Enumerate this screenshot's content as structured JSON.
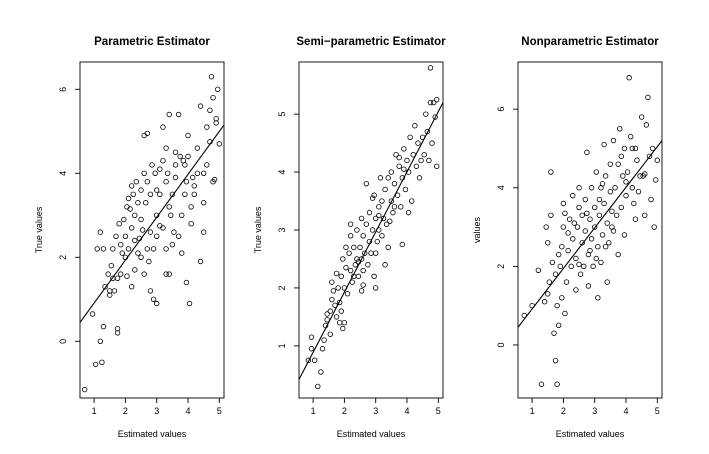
{
  "chart_data": [
    {
      "type": "scatter",
      "title": "Parametric  Estimator",
      "xlabel": "Estimated values",
      "ylabel": "True values",
      "xlim": [
        0.55,
        5.15
      ],
      "ylim": [
        -1.35,
        6.65
      ],
      "xticks": [
        "1",
        "2",
        "3",
        "4",
        "5"
      ],
      "yticks": [
        "0",
        "2",
        "4",
        "6"
      ],
      "fit_line": [
        [
          0.55,
          0.45
        ],
        [
          5.15,
          5.15
        ]
      ],
      "points": [
        [
          0.7,
          -1.15
        ],
        [
          0.95,
          0.65
        ],
        [
          1.2,
          0.0
        ],
        [
          1.05,
          -0.55
        ],
        [
          1.25,
          -0.5
        ],
        [
          1.3,
          0.35
        ],
        [
          1.5,
          1.1
        ],
        [
          1.35,
          1.3
        ],
        [
          1.45,
          1.6
        ],
        [
          1.2,
          2.6
        ],
        [
          1.1,
          2.2
        ],
        [
          1.3,
          2.2
        ],
        [
          1.5,
          1.2
        ],
        [
          1.65,
          1.2
        ],
        [
          1.75,
          0.2
        ],
        [
          1.75,
          0.3
        ],
        [
          1.6,
          1.5
        ],
        [
          1.75,
          1.5
        ],
        [
          1.85,
          1.6
        ],
        [
          1.6,
          2.2
        ],
        [
          1.7,
          2.5
        ],
        [
          1.8,
          2.8
        ],
        [
          1.9,
          2.1
        ],
        [
          2.0,
          2.0
        ],
        [
          2.0,
          2.5
        ],
        [
          2.1,
          2.2
        ],
        [
          2.2,
          2.7
        ],
        [
          2.3,
          2.4
        ],
        [
          2.3,
          3.0
        ],
        [
          2.1,
          3.4
        ],
        [
          2.2,
          3.7
        ],
        [
          2.4,
          3.3
        ],
        [
          2.5,
          2.9
        ],
        [
          2.5,
          3.6
        ],
        [
          2.6,
          4.0
        ],
        [
          2.6,
          4.9
        ],
        [
          2.7,
          4.95
        ],
        [
          2.7,
          3.8
        ],
        [
          2.8,
          3.5
        ],
        [
          2.8,
          2.6
        ],
        [
          2.9,
          2.2
        ],
        [
          2.9,
          1.0
        ],
        [
          3.0,
          0.9
        ],
        [
          2.8,
          1.2
        ],
        [
          2.6,
          1.6
        ],
        [
          2.4,
          2.1
        ],
        [
          2.3,
          1.7
        ],
        [
          2.2,
          1.3
        ],
        [
          2.5,
          2.0
        ],
        [
          2.7,
          2.2
        ],
        [
          3.0,
          2.5
        ],
        [
          3.0,
          3.0
        ],
        [
          3.1,
          3.5
        ],
        [
          3.1,
          4.1
        ],
        [
          3.2,
          4.3
        ],
        [
          3.3,
          4.6
        ],
        [
          3.2,
          5.1
        ],
        [
          3.4,
          5.4
        ],
        [
          3.3,
          3.8
        ],
        [
          3.4,
          3.2
        ],
        [
          3.2,
          2.7
        ],
        [
          3.3,
          2.2
        ],
        [
          3.4,
          1.6
        ],
        [
          3.3,
          1.6
        ],
        [
          3.5,
          2.3
        ],
        [
          3.5,
          3.5
        ],
        [
          3.6,
          4.2
        ],
        [
          3.6,
          4.5
        ],
        [
          3.7,
          5.4
        ],
        [
          3.7,
          2.5
        ],
        [
          3.8,
          2.1
        ],
        [
          3.8,
          3.0
        ],
        [
          3.9,
          3.5
        ],
        [
          3.9,
          4.2
        ],
        [
          4.0,
          4.4
        ],
        [
          4.0,
          4.9
        ],
        [
          4.1,
          2.8
        ],
        [
          4.1,
          3.2
        ],
        [
          3.95,
          1.4
        ],
        [
          4.05,
          0.9
        ],
        [
          4.2,
          3.7
        ],
        [
          4.3,
          4.0
        ],
        [
          4.3,
          4.6
        ],
        [
          4.4,
          5.6
        ],
        [
          4.4,
          1.9
        ],
        [
          4.5,
          3.3
        ],
        [
          4.5,
          2.6
        ],
        [
          4.6,
          4.2
        ],
        [
          4.6,
          5.1
        ],
        [
          4.7,
          4.75
        ],
        [
          4.7,
          5.5
        ],
        [
          4.75,
          6.3
        ],
        [
          4.8,
          5.8
        ],
        [
          4.8,
          3.8
        ],
        [
          4.85,
          3.85
        ],
        [
          4.9,
          5.3
        ],
        [
          4.9,
          5.2
        ],
        [
          4.95,
          6.0
        ],
        [
          5.0,
          4.7
        ],
        [
          4.5,
          4.0
        ],
        [
          4.2,
          3.5
        ],
        [
          3.95,
          3.8
        ],
        [
          3.85,
          4.3
        ],
        [
          3.75,
          4.4
        ],
        [
          3.6,
          3.9
        ],
        [
          3.45,
          3.0
        ],
        [
          3.1,
          2.75
        ],
        [
          3.0,
          3.6
        ],
        [
          2.95,
          4.0
        ],
        [
          2.85,
          4.2
        ],
        [
          2.65,
          3.3
        ],
        [
          2.55,
          2.65
        ],
        [
          2.45,
          2.45
        ],
        [
          2.35,
          3.8
        ],
        [
          2.25,
          3.5
        ],
        [
          2.05,
          3.2
        ],
        [
          1.95,
          2.9
        ],
        [
          1.85,
          2.3
        ],
        [
          1.55,
          1.8
        ],
        [
          2.75,
          1.9
        ],
        [
          2.05,
          1.55
        ],
        [
          3.55,
          2.6
        ],
        [
          4.15,
          3.9
        ],
        [
          3.35,
          4.0
        ],
        [
          2.15,
          3.15
        ]
      ]
    },
    {
      "type": "scatter",
      "title": "Semi−parametric  Estimator",
      "xlabel": "Estimated values",
      "ylabel": "True values",
      "xlim": [
        0.55,
        5.15
      ],
      "ylim": [
        0.1,
        5.9
      ],
      "xticks": [
        "1",
        "2",
        "3",
        "4",
        "5"
      ],
      "yticks": [
        "1",
        "2",
        "3",
        "4",
        "5"
      ],
      "fit_line": [
        [
          0.55,
          0.42
        ],
        [
          5.15,
          5.2
        ]
      ],
      "points": [
        [
          0.85,
          0.75
        ],
        [
          0.95,
          0.95
        ],
        [
          0.95,
          1.15
        ],
        [
          1.05,
          0.75
        ],
        [
          1.15,
          0.3
        ],
        [
          1.25,
          0.55
        ],
        [
          1.3,
          0.95
        ],
        [
          1.35,
          1.1
        ],
        [
          1.4,
          1.35
        ],
        [
          1.45,
          1.45
        ],
        [
          1.45,
          1.55
        ],
        [
          1.55,
          1.6
        ],
        [
          1.6,
          1.8
        ],
        [
          1.6,
          2.1
        ],
        [
          1.65,
          1.95
        ],
        [
          1.7,
          1.7
        ],
        [
          1.75,
          1.5
        ],
        [
          1.75,
          2.25
        ],
        [
          1.8,
          2.0
        ],
        [
          1.85,
          1.75
        ],
        [
          1.9,
          1.6
        ],
        [
          1.9,
          2.2
        ],
        [
          1.95,
          2.5
        ],
        [
          2.0,
          2.0
        ],
        [
          2.05,
          2.35
        ],
        [
          2.05,
          2.7
        ],
        [
          2.1,
          1.9
        ],
        [
          2.15,
          2.6
        ],
        [
          2.2,
          2.3
        ],
        [
          2.2,
          2.9
        ],
        [
          2.25,
          2.1
        ],
        [
          2.3,
          2.7
        ],
        [
          2.35,
          2.4
        ],
        [
          2.4,
          2.5
        ],
        [
          2.4,
          3.0
        ],
        [
          2.45,
          2.2
        ],
        [
          2.5,
          2.7
        ],
        [
          2.55,
          2.5
        ],
        [
          2.55,
          3.2
        ],
        [
          2.6,
          2.3
        ],
        [
          2.6,
          2.9
        ],
        [
          2.65,
          2.6
        ],
        [
          2.7,
          3.1
        ],
        [
          2.7,
          3.8
        ],
        [
          2.75,
          2.4
        ],
        [
          2.8,
          2.8
        ],
        [
          2.8,
          3.3
        ],
        [
          2.85,
          2.6
        ],
        [
          2.9,
          3.0
        ],
        [
          2.95,
          3.6
        ],
        [
          2.95,
          2.2
        ],
        [
          3.0,
          3.2
        ],
        [
          3.0,
          2.6
        ],
        [
          3.05,
          2.8
        ],
        [
          3.1,
          3.4
        ],
        [
          3.1,
          3.0
        ],
        [
          3.15,
          3.9
        ],
        [
          3.2,
          2.9
        ],
        [
          3.2,
          3.5
        ],
        [
          3.25,
          3.2
        ],
        [
          3.3,
          3.7
        ],
        [
          3.35,
          3.1
        ],
        [
          3.4,
          3.9
        ],
        [
          3.4,
          2.7
        ],
        [
          3.5,
          3.5
        ],
        [
          3.5,
          4.0
        ],
        [
          3.55,
          3.3
        ],
        [
          3.6,
          3.8
        ],
        [
          3.65,
          4.3
        ],
        [
          3.7,
          3.6
        ],
        [
          3.75,
          4.1
        ],
        [
          3.8,
          3.4
        ],
        [
          3.85,
          3.9
        ],
        [
          3.9,
          4.4
        ],
        [
          3.95,
          3.7
        ],
        [
          4.0,
          4.2
        ],
        [
          4.05,
          4.0
        ],
        [
          4.1,
          4.6
        ],
        [
          4.15,
          3.5
        ],
        [
          4.2,
          4.3
        ],
        [
          4.25,
          4.8
        ],
        [
          4.3,
          4.1
        ],
        [
          4.35,
          4.5
        ],
        [
          4.4,
          3.9
        ],
        [
          4.5,
          4.6
        ],
        [
          4.55,
          4.3
        ],
        [
          4.6,
          5.0
        ],
        [
          4.65,
          4.7
        ],
        [
          4.7,
          4.2
        ],
        [
          4.75,
          5.2
        ],
        [
          4.8,
          4.5
        ],
        [
          4.85,
          5.2
        ],
        [
          4.9,
          4.95
        ],
        [
          4.95,
          4.1
        ],
        [
          4.95,
          5.25
        ],
        [
          4.75,
          5.8
        ],
        [
          2.2,
          3.1
        ],
        [
          2.0,
          1.4
        ],
        [
          1.55,
          1.2
        ],
        [
          3.0,
          2.0
        ],
        [
          3.3,
          2.4
        ],
        [
          4.05,
          3.3
        ],
        [
          3.85,
          2.75
        ],
        [
          2.55,
          1.95
        ],
        [
          1.95,
          1.3
        ],
        [
          2.6,
          2.05
        ],
        [
          3.1,
          3.25
        ],
        [
          3.75,
          4.25
        ],
        [
          2.9,
          3.55
        ],
        [
          2.45,
          2.45
        ],
        [
          3.45,
          3.15
        ],
        [
          4.45,
          4.2
        ],
        [
          3.6,
          3.4
        ],
        [
          2.3,
          2.2
        ],
        [
          3.9,
          4.05
        ],
        [
          1.85,
          1.4
        ]
      ]
    },
    {
      "type": "scatter",
      "title": "Nonparametric  Estimator",
      "xlabel": "Estimated values",
      "ylabel": "values",
      "xlim": [
        0.55,
        5.15
      ],
      "ylim": [
        -1.35,
        7.2
      ],
      "xticks": [
        "1",
        "2",
        "3",
        "4",
        "5"
      ],
      "yticks": [
        "0",
        "2",
        "4",
        "6"
      ],
      "fit_line": [
        [
          0.55,
          0.45
        ],
        [
          5.15,
          5.2
        ]
      ],
      "points": [
        [
          1.0,
          1.0
        ],
        [
          0.75,
          0.75
        ],
        [
          1.2,
          1.9
        ],
        [
          1.3,
          -1.0
        ],
        [
          1.4,
          1.1
        ],
        [
          1.5,
          1.3
        ],
        [
          1.55,
          1.6
        ],
        [
          1.5,
          2.6
        ],
        [
          1.45,
          3.0
        ],
        [
          1.6,
          3.3
        ],
        [
          1.6,
          4.4
        ],
        [
          1.7,
          0.3
        ],
        [
          1.75,
          -0.4
        ],
        [
          1.8,
          -1.0
        ],
        [
          1.85,
          0.5
        ],
        [
          1.8,
          1.0
        ],
        [
          1.75,
          1.8
        ],
        [
          1.9,
          2.0
        ],
        [
          1.95,
          2.5
        ],
        [
          2.0,
          3.0
        ],
        [
          2.0,
          3.6
        ],
        [
          2.1,
          1.6
        ],
        [
          2.05,
          0.8
        ],
        [
          2.15,
          2.4
        ],
        [
          2.2,
          3.2
        ],
        [
          2.25,
          2.0
        ],
        [
          2.3,
          2.7
        ],
        [
          2.3,
          3.8
        ],
        [
          2.4,
          1.4
        ],
        [
          2.4,
          2.2
        ],
        [
          2.45,
          3.0
        ],
        [
          2.5,
          3.5
        ],
        [
          2.5,
          4.0
        ],
        [
          2.55,
          1.8
        ],
        [
          2.6,
          2.6
        ],
        [
          2.6,
          3.3
        ],
        [
          2.65,
          2.0
        ],
        [
          2.7,
          2.9
        ],
        [
          2.7,
          3.7
        ],
        [
          2.75,
          4.9
        ],
        [
          2.8,
          1.5
        ],
        [
          2.8,
          2.3
        ],
        [
          2.85,
          3.2
        ],
        [
          2.9,
          2.7
        ],
        [
          2.9,
          4.0
        ],
        [
          2.95,
          2.0
        ],
        [
          3.0,
          3.0
        ],
        [
          3.0,
          3.5
        ],
        [
          3.05,
          4.4
        ],
        [
          3.1,
          2.5
        ],
        [
          3.1,
          1.2
        ],
        [
          3.15,
          3.3
        ],
        [
          3.2,
          2.1
        ],
        [
          3.2,
          4.0
        ],
        [
          3.25,
          2.8
        ],
        [
          3.3,
          3.6
        ],
        [
          3.3,
          5.1
        ],
        [
          3.35,
          4.3
        ],
        [
          3.4,
          1.6
        ],
        [
          3.4,
          3.1
        ],
        [
          3.45,
          2.6
        ],
        [
          3.5,
          3.9
        ],
        [
          3.5,
          4.6
        ],
        [
          3.55,
          3.4
        ],
        [
          3.6,
          2.9
        ],
        [
          3.6,
          5.2
        ],
        [
          3.65,
          4.0
        ],
        [
          3.7,
          3.3
        ],
        [
          3.75,
          2.3
        ],
        [
          3.75,
          4.6
        ],
        [
          3.8,
          5.5
        ],
        [
          3.85,
          3.5
        ],
        [
          3.9,
          4.3
        ],
        [
          3.95,
          2.8
        ],
        [
          3.95,
          5.0
        ],
        [
          4.0,
          3.8
        ],
        [
          4.05,
          4.4
        ],
        [
          4.1,
          6.8
        ],
        [
          4.15,
          5.3
        ],
        [
          4.2,
          4.0
        ],
        [
          4.25,
          3.6
        ],
        [
          4.3,
          5.0
        ],
        [
          4.35,
          4.7
        ],
        [
          4.4,
          3.9
        ],
        [
          4.5,
          5.8
        ],
        [
          4.55,
          4.3
        ],
        [
          4.6,
          3.3
        ],
        [
          4.65,
          5.6
        ],
        [
          4.7,
          6.3
        ],
        [
          4.75,
          4.8
        ],
        [
          4.8,
          3.7
        ],
        [
          4.85,
          5.0
        ],
        [
          4.9,
          3.0
        ],
        [
          4.95,
          4.2
        ],
        [
          5.0,
          4.7
        ],
        [
          1.95,
          1.2
        ],
        [
          2.35,
          3.1
        ],
        [
          3.05,
          2.2
        ],
        [
          4.2,
          5.0
        ],
        [
          4.45,
          4.3
        ],
        [
          1.65,
          2.1
        ],
        [
          2.75,
          3.35
        ],
        [
          3.55,
          3.0
        ],
        [
          3.25,
          4.1
        ],
        [
          2.15,
          2.85
        ],
        [
          2.85,
          2.4
        ],
        [
          4.0,
          4.15
        ],
        [
          3.85,
          4.8
        ],
        [
          1.85,
          2.3
        ],
        [
          2.5,
          2.05
        ],
        [
          3.35,
          2.5
        ],
        [
          4.6,
          4.35
        ],
        [
          2.05,
          3.35
        ],
        [
          3.15,
          3.7
        ],
        [
          4.3,
          3.2
        ]
      ]
    }
  ]
}
